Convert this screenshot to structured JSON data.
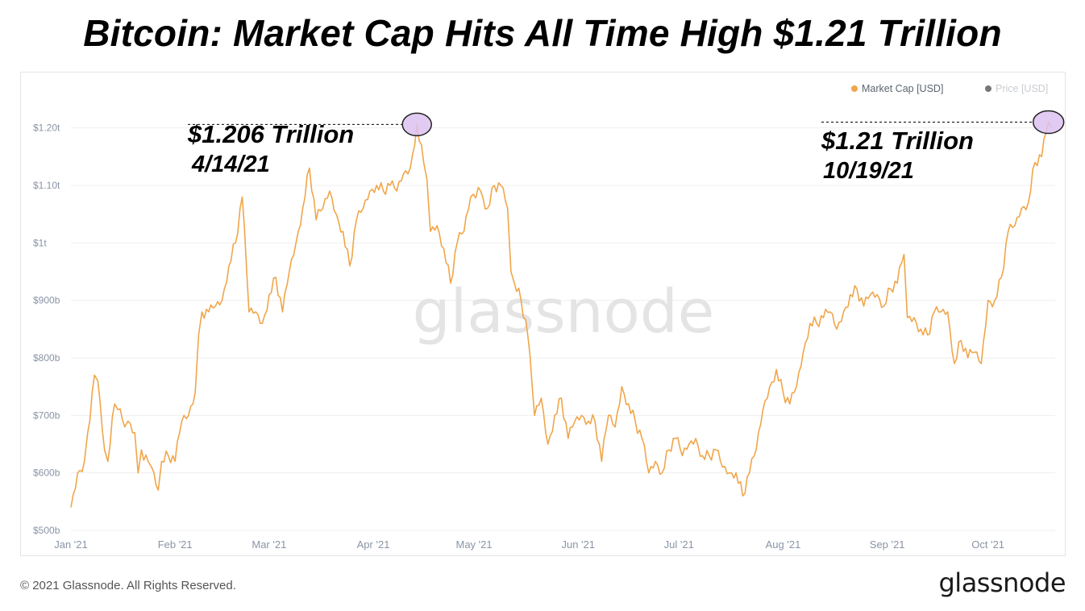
{
  "header": {
    "title": "Bitcoin: Market Cap Hits All Time High $1.21 Trillion"
  },
  "footer": {
    "copyright": "© 2021 Glassnode. All Rights Reserved.",
    "logo_text": "glassnode"
  },
  "colors": {
    "market_cap_line": "#f0a64a",
    "price_legend_dot": "#777777",
    "ath_marker_fill": "#ddc2f0",
    "ath_marker_stroke": "#222222",
    "gridline": "#efefef",
    "tick_label": "#8a94a6",
    "watermark": "#e4e4e4"
  },
  "chart_data": {
    "type": "line",
    "title": "Bitcoin: Market Cap Hits All Time High $1.21 Trillion",
    "watermark": "glassnode",
    "xlabel": "",
    "ylabel": "",
    "grid": true,
    "legend_position": "top-right",
    "xlim": [
      "2021-01-01",
      "2021-10-21"
    ],
    "ylim": [
      500,
      1250
    ],
    "y_unit": "billion USD",
    "x_ticks": [
      {
        "date": "2021-01-01",
        "label": "Jan '21"
      },
      {
        "date": "2021-02-01",
        "label": "Feb '21"
      },
      {
        "date": "2021-03-01",
        "label": "Mar '21"
      },
      {
        "date": "2021-04-01",
        "label": "Apr '21"
      },
      {
        "date": "2021-05-01",
        "label": "May '21"
      },
      {
        "date": "2021-06-01",
        "label": "Jun '21"
      },
      {
        "date": "2021-07-01",
        "label": "Jul '21"
      },
      {
        "date": "2021-08-01",
        "label": "Aug '21"
      },
      {
        "date": "2021-09-01",
        "label": "Sep '21"
      },
      {
        "date": "2021-10-01",
        "label": "Oct '21"
      }
    ],
    "y_ticks": [
      {
        "value": 500,
        "label": "$500b"
      },
      {
        "value": 600,
        "label": "$600b"
      },
      {
        "value": 700,
        "label": "$700b"
      },
      {
        "value": 800,
        "label": "$800b"
      },
      {
        "value": 900,
        "label": "$900b"
      },
      {
        "value": 1000,
        "label": "$1t"
      },
      {
        "value": 1100,
        "label": "$1.10t"
      },
      {
        "value": 1200,
        "label": "$1.20t"
      }
    ],
    "legend": [
      {
        "label": "Market Cap [USD]",
        "color": "#f0a64a",
        "active": true
      },
      {
        "label": "Price [USD]",
        "color": "#777777",
        "active": false
      }
    ],
    "series": [
      {
        "name": "Market Cap [USD]",
        "points": [
          [
            "2021-01-01",
            540
          ],
          [
            "2021-01-03",
            600
          ],
          [
            "2021-01-05",
            620
          ],
          [
            "2021-01-06",
            670
          ],
          [
            "2021-01-08",
            770
          ],
          [
            "2021-01-09",
            760
          ],
          [
            "2021-01-11",
            640
          ],
          [
            "2021-01-12",
            620
          ],
          [
            "2021-01-14",
            720
          ],
          [
            "2021-01-15",
            710
          ],
          [
            "2021-01-17",
            680
          ],
          [
            "2021-01-18",
            690
          ],
          [
            "2021-01-20",
            670
          ],
          [
            "2021-01-21",
            600
          ],
          [
            "2021-01-22",
            640
          ],
          [
            "2021-01-24",
            620
          ],
          [
            "2021-01-25",
            610
          ],
          [
            "2021-01-27",
            570
          ],
          [
            "2021-01-28",
            620
          ],
          [
            "2021-01-30",
            630
          ],
          [
            "2021-02-01",
            620
          ],
          [
            "2021-02-03",
            690
          ],
          [
            "2021-02-05",
            700
          ],
          [
            "2021-02-07",
            740
          ],
          [
            "2021-02-08",
            840
          ],
          [
            "2021-02-09",
            880
          ],
          [
            "2021-02-11",
            880
          ],
          [
            "2021-02-13",
            890
          ],
          [
            "2021-02-15",
            900
          ],
          [
            "2021-02-17",
            960
          ],
          [
            "2021-02-19",
            1000
          ],
          [
            "2021-02-21",
            1080
          ],
          [
            "2021-02-23",
            880
          ],
          [
            "2021-02-25",
            880
          ],
          [
            "2021-02-27",
            860
          ],
          [
            "2021-03-01",
            910
          ],
          [
            "2021-03-03",
            940
          ],
          [
            "2021-03-05",
            880
          ],
          [
            "2021-03-07",
            950
          ],
          [
            "2021-03-09",
            1000
          ],
          [
            "2021-03-11",
            1060
          ],
          [
            "2021-03-13",
            1130
          ],
          [
            "2021-03-15",
            1040
          ],
          [
            "2021-03-17",
            1060
          ],
          [
            "2021-03-19",
            1090
          ],
          [
            "2021-03-21",
            1050
          ],
          [
            "2021-03-23",
            1020
          ],
          [
            "2021-03-25",
            960
          ],
          [
            "2021-03-27",
            1040
          ],
          [
            "2021-03-29",
            1060
          ],
          [
            "2021-03-31",
            1090
          ],
          [
            "2021-04-02",
            1100
          ],
          [
            "2021-04-04",
            1090
          ],
          [
            "2021-04-06",
            1100
          ],
          [
            "2021-04-08",
            1090
          ],
          [
            "2021-04-10",
            1120
          ],
          [
            "2021-04-12",
            1130
          ],
          [
            "2021-04-14",
            1206
          ],
          [
            "2021-04-16",
            1140
          ],
          [
            "2021-04-17",
            1110
          ],
          [
            "2021-04-18",
            1020
          ],
          [
            "2021-04-20",
            1030
          ],
          [
            "2021-04-22",
            990
          ],
          [
            "2021-04-24",
            930
          ],
          [
            "2021-04-26",
            1000
          ],
          [
            "2021-04-28",
            1020
          ],
          [
            "2021-04-30",
            1080
          ],
          [
            "2021-05-03",
            1090
          ],
          [
            "2021-05-05",
            1060
          ],
          [
            "2021-05-07",
            1100
          ],
          [
            "2021-05-09",
            1100
          ],
          [
            "2021-05-11",
            1060
          ],
          [
            "2021-05-12",
            950
          ],
          [
            "2021-05-13",
            930
          ],
          [
            "2021-05-15",
            900
          ],
          [
            "2021-05-17",
            840
          ],
          [
            "2021-05-19",
            700
          ],
          [
            "2021-05-21",
            730
          ],
          [
            "2021-05-23",
            650
          ],
          [
            "2021-05-25",
            700
          ],
          [
            "2021-05-27",
            730
          ],
          [
            "2021-05-29",
            660
          ],
          [
            "2021-05-31",
            690
          ],
          [
            "2021-06-02",
            700
          ],
          [
            "2021-06-04",
            690
          ],
          [
            "2021-06-06",
            690
          ],
          [
            "2021-06-08",
            620
          ],
          [
            "2021-06-10",
            700
          ],
          [
            "2021-06-12",
            680
          ],
          [
            "2021-06-14",
            750
          ],
          [
            "2021-06-16",
            720
          ],
          [
            "2021-06-18",
            690
          ],
          [
            "2021-06-20",
            660
          ],
          [
            "2021-06-22",
            600
          ],
          [
            "2021-06-24",
            620
          ],
          [
            "2021-06-26",
            600
          ],
          [
            "2021-06-28",
            640
          ],
          [
            "2021-06-30",
            660
          ],
          [
            "2021-07-02",
            630
          ],
          [
            "2021-07-04",
            650
          ],
          [
            "2021-07-06",
            660
          ],
          [
            "2021-07-08",
            630
          ],
          [
            "2021-07-10",
            630
          ],
          [
            "2021-07-12",
            640
          ],
          [
            "2021-07-14",
            610
          ],
          [
            "2021-07-16",
            600
          ],
          [
            "2021-07-18",
            600
          ],
          [
            "2021-07-20",
            560
          ],
          [
            "2021-07-22",
            600
          ],
          [
            "2021-07-24",
            640
          ],
          [
            "2021-07-26",
            710
          ],
          [
            "2021-07-28",
            750
          ],
          [
            "2021-07-30",
            780
          ],
          [
            "2021-08-01",
            740
          ],
          [
            "2021-08-03",
            720
          ],
          [
            "2021-08-05",
            750
          ],
          [
            "2021-08-07",
            810
          ],
          [
            "2021-08-09",
            860
          ],
          [
            "2021-08-11",
            860
          ],
          [
            "2021-08-13",
            870
          ],
          [
            "2021-08-15",
            880
          ],
          [
            "2021-08-17",
            850
          ],
          [
            "2021-08-19",
            880
          ],
          [
            "2021-08-21",
            910
          ],
          [
            "2021-08-23",
            920
          ],
          [
            "2021-08-25",
            890
          ],
          [
            "2021-08-27",
            910
          ],
          [
            "2021-08-29",
            910
          ],
          [
            "2021-08-31",
            890
          ],
          [
            "2021-09-02",
            920
          ],
          [
            "2021-09-04",
            930
          ],
          [
            "2021-09-06",
            980
          ],
          [
            "2021-09-07",
            870
          ],
          [
            "2021-09-09",
            870
          ],
          [
            "2021-09-11",
            850
          ],
          [
            "2021-09-13",
            840
          ],
          [
            "2021-09-15",
            880
          ],
          [
            "2021-09-17",
            880
          ],
          [
            "2021-09-19",
            880
          ],
          [
            "2021-09-21",
            790
          ],
          [
            "2021-09-23",
            830
          ],
          [
            "2021-09-25",
            800
          ],
          [
            "2021-09-27",
            810
          ],
          [
            "2021-09-29",
            790
          ],
          [
            "2021-10-01",
            900
          ],
          [
            "2021-10-03",
            900
          ],
          [
            "2021-10-05",
            940
          ],
          [
            "2021-10-07",
            1020
          ],
          [
            "2021-10-09",
            1030
          ],
          [
            "2021-10-11",
            1060
          ],
          [
            "2021-10-13",
            1070
          ],
          [
            "2021-10-15",
            1140
          ],
          [
            "2021-10-17",
            1150
          ],
          [
            "2021-10-19",
            1210
          ],
          [
            "2021-10-20",
            1200
          ]
        ]
      }
    ],
    "annotations": [
      {
        "key": "apr",
        "date": "2021-04-14",
        "value": 1206,
        "value_text": "$1.206 Trillion",
        "date_text": "4/14/21"
      },
      {
        "key": "oct",
        "date": "2021-10-19",
        "value": 1210,
        "value_text": "$1.21 Trillion",
        "date_text": "10/19/21"
      }
    ]
  }
}
